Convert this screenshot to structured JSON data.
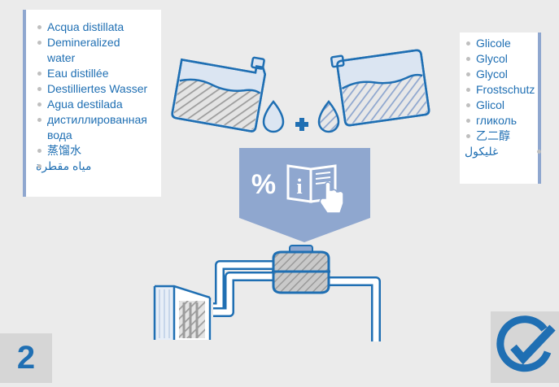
{
  "water_terms": [
    "Acqua distillata",
    "Demineralized water",
    "Eau distillée",
    "Destilliertes Wasser",
    "Agua destilada",
    "дистиллированная вода",
    "蒸馏水",
    "مياه مقطرة"
  ],
  "glycol_terms": [
    "Glicole",
    "Glycol",
    "Glycol",
    "Frostschutz",
    "Glicol",
    "гликоль",
    "乙二醇",
    "غليكول"
  ],
  "instruction": {
    "percent_symbol": "%",
    "info_symbol": "i"
  },
  "step": {
    "number": "2"
  },
  "colors": {
    "primary_blue": "#1f6fb3",
    "light_blue": "#8fa7cf",
    "pale_blue": "#a9c0e0",
    "background": "#ebebeb",
    "badge_gray": "#d6d6d6"
  },
  "icons": [
    "water-canister-icon",
    "glycol-canister-icon",
    "plus-icon",
    "manual-icon",
    "pointing-hand-icon",
    "radiator-icon",
    "expansion-tank-icon",
    "checkmark-icon"
  ]
}
